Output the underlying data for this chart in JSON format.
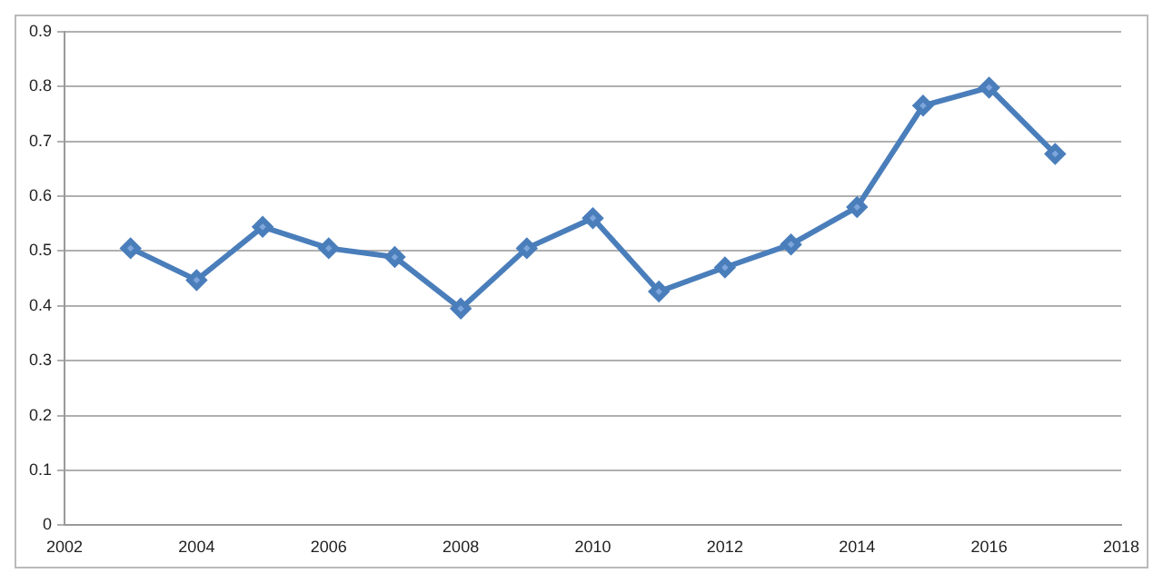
{
  "chart_data": {
    "type": "line",
    "x": [
      2003,
      2004,
      2005,
      2006,
      2007,
      2008,
      2009,
      2010,
      2011,
      2012,
      2013,
      2014,
      2015,
      2016,
      2017
    ],
    "series": [
      {
        "color": "#4a7ebb",
        "values": [
          0.505,
          0.447,
          0.544,
          0.505,
          0.489,
          0.395,
          0.505,
          0.56,
          0.426,
          0.47,
          0.512,
          0.58,
          0.765,
          0.798,
          0.677
        ]
      }
    ],
    "xlim": [
      2002,
      2018
    ],
    "xticks": [
      2002,
      2004,
      2006,
      2008,
      2010,
      2012,
      2014,
      2016,
      2018
    ],
    "ylim": [
      0,
      0.9
    ],
    "yticks": [
      0,
      0.1,
      0.2,
      0.3,
      0.4,
      0.5,
      0.6,
      0.7,
      0.8,
      0.9
    ],
    "grid": "y",
    "legend": false,
    "marker": "diamond",
    "line_style": "solid"
  }
}
